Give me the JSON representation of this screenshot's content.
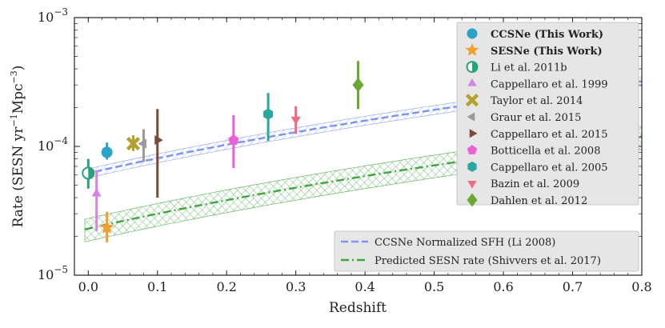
{
  "chart_data": {
    "type": "scatter",
    "xlabel": "Redshift",
    "ylabel": "Rate (SESN yr",
    "ylabel_sup1": "−1",
    "ylabel_mid": "Mpc",
    "ylabel_sup2": "−3",
    "ylabel_end": ")",
    "xlim": [
      -0.02,
      0.8
    ],
    "ylim_log10": [
      -5,
      -3
    ],
    "x_ticks": [
      0.0,
      0.1,
      0.2,
      0.3,
      0.4,
      0.5,
      0.6,
      0.7,
      0.8
    ],
    "x_tick_labels": [
      "0.0",
      "0.1",
      "0.2",
      "0.3",
      "0.4",
      "0.5",
      "0.6",
      "0.7",
      "0.8"
    ],
    "y_ticks_exp": [
      -5,
      -4,
      -3
    ],
    "y_tick_base": "10",
    "y_tick_exps": [
      "−5",
      "−4",
      "−3"
    ],
    "points": [
      {
        "label": "CCSNe (This Work)",
        "bold": true,
        "marker": "circle",
        "color": "#2aa3c7",
        "x": 0.027,
        "y": 9e-05,
        "ylo": 7.9e-05,
        "yhi": 0.000107
      },
      {
        "label": "SESNe (This Work)",
        "bold": true,
        "marker": "star",
        "color": "#f0a030",
        "x": 0.027,
        "y": 2.35e-05,
        "ylo": 1.8e-05,
        "yhi": 3.1e-05
      },
      {
        "label": "Li et al. 2011b",
        "marker": "halfcircle",
        "color": "#27a37a",
        "x": 0.0,
        "y": 6.2e-05,
        "ylo": 4.7e-05,
        "yhi": 8e-05
      },
      {
        "label": "Cappellaro et al. 1999",
        "marker": "triangle-up",
        "color": "#d882e6",
        "x": 0.012,
        "y": 4.3e-05,
        "ylo": 2.2e-05,
        "yhi": 6.5e-05
      },
      {
        "label": "Taylor et al. 2014",
        "marker": "x-cross",
        "color": "#b3a12e",
        "x": 0.065,
        "y": 0.000105,
        "ylo": 9.2e-05,
        "yhi": 0.000122
      },
      {
        "label": "Graur et al. 2015",
        "marker": "triangle-left",
        "color": "#9a9a9a",
        "x": 0.08,
        "y": 0.000105,
        "ylo": 7.6e-05,
        "yhi": 0.000136
      },
      {
        "label": "Cappellaro et al. 2015",
        "marker": "triangle-right",
        "color": "#7b4b3a",
        "x": 0.1,
        "y": 0.000112,
        "ylo": 4e-05,
        "yhi": 0.000195
      },
      {
        "label": "Botticella et al. 2008",
        "marker": "pentagon",
        "color": "#ec5fd8",
        "x": 0.21,
        "y": 0.000112,
        "ylo": 6.8e-05,
        "yhi": 0.000175
      },
      {
        "label": "Cappellaro et al. 2005",
        "marker": "hexagon",
        "color": "#2aa89f",
        "x": 0.26,
        "y": 0.000178,
        "ylo": 0.00011,
        "yhi": 0.00026
      },
      {
        "label": "Bazin et al. 2009",
        "marker": "triangle-down",
        "color": "#f06b82",
        "x": 0.3,
        "y": 0.000162,
        "ylo": 0.000125,
        "yhi": 0.000205
      },
      {
        "label": "Dahlen et al. 2012",
        "marker": "diamond",
        "color": "#6aa832",
        "x": 0.39,
        "y": 0.0003,
        "ylo": 0.000195,
        "yhi": 0.00046
      }
    ],
    "curves": [
      {
        "label": "CCSNe Normalized SFH (Li 2008)",
        "style": "dashed",
        "color": "#7b96f2",
        "center_at_z0": 6.2e-05,
        "band_frac": 0.08,
        "power": 1.8,
        "x": [
          -0.005,
          0.8
        ]
      },
      {
        "label": "Predicted SESN rate (Shivvers et al. 2017)",
        "style": "dashdot",
        "color": "#3fa63f",
        "center_at_z0": 2.3e-05,
        "band_frac": 0.2,
        "power": 1.8,
        "x": [
          -0.005,
          0.8
        ]
      }
    ],
    "legend_location": "upper-right",
    "legend2_location": "lower-right"
  }
}
